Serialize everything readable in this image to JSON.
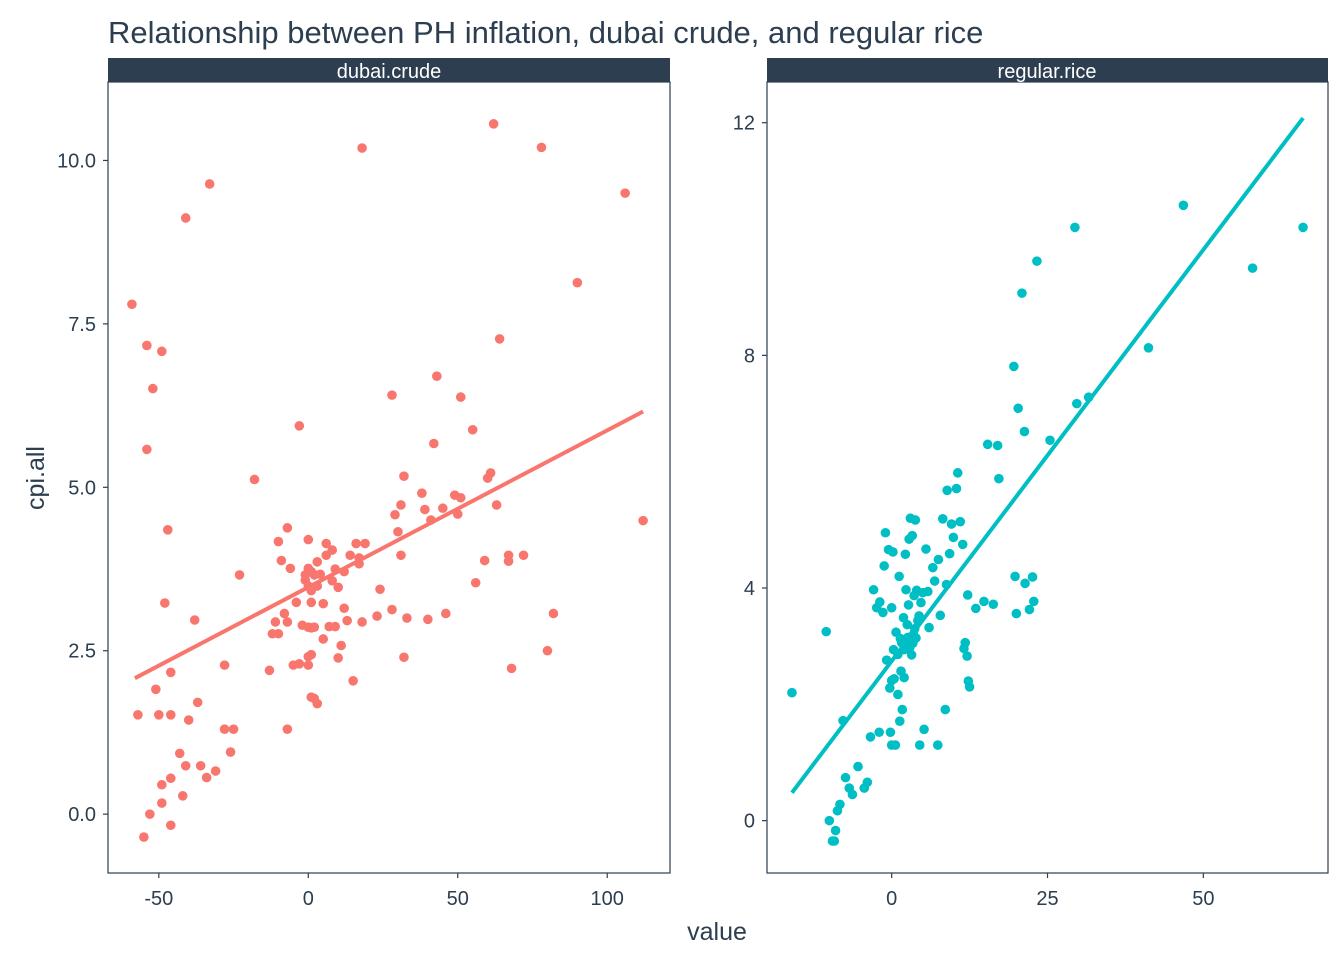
{
  "chart_data": {
    "type": "scatter",
    "title": "Relationship between PH inflation, dubai crude, and regular rice",
    "xlabel": "value",
    "ylabel": "cpi.all",
    "grid": false,
    "legend": "none",
    "facet_strip_color": "#2c3e50",
    "panels": [
      {
        "strip_label": "dubai.crude",
        "color": "#f8766d",
        "xlim": [
          -67,
          121
        ],
        "ylim": [
          -0.9,
          11.2
        ],
        "x_ticks": [
          -50,
          0,
          50,
          100
        ],
        "x_tick_labels": [
          "-50",
          "0",
          "50",
          "100"
        ],
        "y_ticks": [
          0,
          2.5,
          5,
          7.5,
          10
        ],
        "y_tick_labels": [
          "0.0",
          "2.5",
          "5.0",
          "7.5",
          "10.0"
        ],
        "trend_line": {
          "x": [
            -58,
            112
          ],
          "y": [
            2.08,
            6.16
          ]
        },
        "points": [
          [
            -59,
            7.8
          ],
          [
            -54,
            7.17
          ],
          [
            -52,
            6.51
          ],
          [
            -49,
            7.08
          ],
          [
            -54,
            5.58
          ],
          [
            -47,
            4.35
          ],
          [
            -48,
            3.23
          ],
          [
            -57,
            1.52
          ],
          [
            -51,
            1.91
          ],
          [
            -50,
            1.52
          ],
          [
            -46,
            1.52
          ],
          [
            -46,
            2.17
          ],
          [
            -53,
            0.0
          ],
          [
            -49,
            0.45
          ],
          [
            -49,
            0.17
          ],
          [
            -46,
            0.55
          ],
          [
            -55,
            -0.35
          ],
          [
            -46,
            -0.17
          ],
          [
            -43,
            0.93
          ],
          [
            -42,
            0.28
          ],
          [
            -41,
            0.74
          ],
          [
            -40,
            1.44
          ],
          [
            -37,
            1.71
          ],
          [
            -38,
            2.97
          ],
          [
            -36,
            0.74
          ],
          [
            -34,
            0.56
          ],
          [
            -31,
            0.66
          ],
          [
            -28,
            1.3
          ],
          [
            -28,
            2.28
          ],
          [
            -26,
            0.95
          ],
          [
            -25,
            1.3
          ],
          [
            -23,
            3.66
          ],
          [
            -18,
            5.12
          ],
          [
            -41,
            9.12
          ],
          [
            -33,
            9.64
          ],
          [
            -13,
            2.2
          ],
          [
            -12,
            2.76
          ],
          [
            -11,
            2.94
          ],
          [
            -10,
            2.76
          ],
          [
            -10,
            4.17
          ],
          [
            -9,
            3.88
          ],
          [
            -8,
            3.07
          ],
          [
            -7,
            4.38
          ],
          [
            -7,
            2.94
          ],
          [
            -7,
            1.3
          ],
          [
            -6,
            3.76
          ],
          [
            -5,
            2.28
          ],
          [
            -4,
            3.24
          ],
          [
            -3,
            5.94
          ],
          [
            -3,
            2.3
          ],
          [
            -2,
            2.89
          ],
          [
            -1,
            3.58
          ],
          [
            -1,
            3.66
          ],
          [
            0,
            3.49
          ],
          [
            0,
            2.86
          ],
          [
            0,
            2.41
          ],
          [
            0,
            2.28
          ],
          [
            0,
            4.2
          ],
          [
            0,
            3.76
          ],
          [
            1,
            2.44
          ],
          [
            1,
            3.24
          ],
          [
            1,
            2.85
          ],
          [
            1,
            3.71
          ],
          [
            1,
            3.42
          ],
          [
            1,
            1.79
          ],
          [
            2,
            2.86
          ],
          [
            2,
            3.66
          ],
          [
            2,
            1.77
          ],
          [
            3,
            3.86
          ],
          [
            3,
            3.49
          ],
          [
            3,
            1.69
          ],
          [
            4,
            3.67
          ],
          [
            5,
            2.68
          ],
          [
            5,
            3.22
          ],
          [
            6,
            4.14
          ],
          [
            6,
            3.96
          ],
          [
            7,
            2.87
          ],
          [
            8,
            3.57
          ],
          [
            8,
            4.04
          ],
          [
            9,
            2.87
          ],
          [
            9,
            3.75
          ],
          [
            10,
            3.47
          ],
          [
            10,
            2.39
          ],
          [
            11,
            2.58
          ],
          [
            12,
            3.71
          ],
          [
            12,
            3.15
          ],
          [
            13,
            2.96
          ],
          [
            14,
            3.96
          ],
          [
            15,
            2.04
          ],
          [
            16,
            4.14
          ],
          [
            17,
            3.83
          ],
          [
            17,
            3.92
          ],
          [
            18,
            2.94
          ],
          [
            19,
            4.14
          ],
          [
            18,
            10.19
          ],
          [
            23,
            3.03
          ],
          [
            24,
            3.44
          ],
          [
            28,
            3.13
          ],
          [
            28,
            6.41
          ],
          [
            29,
            4.58
          ],
          [
            30,
            4.32
          ],
          [
            31,
            4.73
          ],
          [
            31,
            3.96
          ],
          [
            32,
            5.17
          ],
          [
            32,
            2.4
          ],
          [
            33,
            3.0
          ],
          [
            38,
            4.91
          ],
          [
            39,
            4.66
          ],
          [
            40,
            2.98
          ],
          [
            41,
            4.5
          ],
          [
            42,
            5.67
          ],
          [
            43,
            6.7
          ],
          [
            45,
            4.68
          ],
          [
            46,
            3.07
          ],
          [
            49,
            4.88
          ],
          [
            50,
            4.59
          ],
          [
            51,
            4.84
          ],
          [
            51,
            6.38
          ],
          [
            55,
            5.88
          ],
          [
            56,
            3.54
          ],
          [
            59,
            3.88
          ],
          [
            60,
            5.14
          ],
          [
            61,
            5.22
          ],
          [
            62,
            10.56
          ],
          [
            63,
            4.73
          ],
          [
            64,
            7.27
          ],
          [
            67,
            3.96
          ],
          [
            67,
            3.87
          ],
          [
            68,
            2.23
          ],
          [
            72,
            3.96
          ],
          [
            78,
            10.2
          ],
          [
            80,
            2.5
          ],
          [
            82,
            3.07
          ],
          [
            90,
            8.13
          ],
          [
            106,
            9.5
          ],
          [
            112,
            4.49
          ]
        ]
      },
      {
        "strip_label": "regular.rice",
        "color": "#00bfc4",
        "xlim": [
          -20,
          70
        ],
        "ylim": [
          -0.9,
          12.7
        ],
        "x_ticks": [
          0,
          25,
          50
        ],
        "x_tick_labels": [
          "0",
          "25",
          "50"
        ],
        "y_ticks": [
          0,
          4,
          8,
          12
        ],
        "y_tick_labels": [
          "0",
          "4",
          "8",
          "12"
        ],
        "trend_line": {
          "x": [
            -16,
            66
          ],
          "y": [
            0.48,
            12.08
          ]
        },
        "points": [
          [
            -16,
            2.2
          ],
          [
            -10.5,
            3.25
          ],
          [
            -10,
            0.0
          ],
          [
            -9.5,
            -0.35
          ],
          [
            -9.2,
            -0.35
          ],
          [
            -9,
            -0.17
          ],
          [
            -8.7,
            0.17
          ],
          [
            -8.3,
            0.28
          ],
          [
            -7.8,
            1.72
          ],
          [
            -7.4,
            0.74
          ],
          [
            -6.8,
            0.56
          ],
          [
            -6.3,
            0.45
          ],
          [
            -5.4,
            0.93
          ],
          [
            -4.4,
            0.56
          ],
          [
            -3.9,
            0.66
          ],
          [
            -3.4,
            1.44
          ],
          [
            -2.9,
            3.97
          ],
          [
            -2.4,
            3.66
          ],
          [
            -2,
            1.52
          ],
          [
            -1.9,
            3.76
          ],
          [
            -1.4,
            3.58
          ],
          [
            -1.2,
            4.38
          ],
          [
            -1,
            4.95
          ],
          [
            -0.8,
            2.76
          ],
          [
            -0.5,
            4.66
          ],
          [
            -0.3,
            2.28
          ],
          [
            -0.2,
            1.52
          ],
          [
            0,
            2.41
          ],
          [
            0,
            3.66
          ],
          [
            0,
            1.3
          ],
          [
            0.2,
            4.62
          ],
          [
            0.3,
            2.94
          ],
          [
            0.4,
            2.44
          ],
          [
            0.6,
            1.3
          ],
          [
            0.7,
            3.24
          ],
          [
            1,
            2.86
          ],
          [
            1,
            2.17
          ],
          [
            1.2,
            4.2
          ],
          [
            1.3,
            1.71
          ],
          [
            1.4,
            3.13
          ],
          [
            1.5,
            2.57
          ],
          [
            1.6,
            3.06
          ],
          [
            1.7,
            1.91
          ],
          [
            1.9,
            3.49
          ],
          [
            2,
            2.94
          ],
          [
            2,
            2.46
          ],
          [
            2.2,
            4.58
          ],
          [
            2.3,
            3.97
          ],
          [
            2.4,
            3.03
          ],
          [
            2.5,
            3.37
          ],
          [
            2.6,
            3.15
          ],
          [
            2.7,
            3.71
          ],
          [
            2.8,
            4.84
          ],
          [
            2.9,
            2.97
          ],
          [
            3,
            5.2
          ],
          [
            3.1,
            3.03
          ],
          [
            3.2,
            2.85
          ],
          [
            3.3,
            4.9
          ],
          [
            3.4,
            3.05
          ],
          [
            3.5,
            3.2
          ],
          [
            3.6,
            3.87
          ],
          [
            3.7,
            3.3
          ],
          [
            3.8,
            5.17
          ],
          [
            3.9,
            3.14
          ],
          [
            4,
            3.96
          ],
          [
            4.2,
            3.44
          ],
          [
            4.4,
            3.52
          ],
          [
            4.5,
            1.3
          ],
          [
            4.7,
            3.75
          ],
          [
            5,
            3.92
          ],
          [
            5.2,
            1.57
          ],
          [
            5.5,
            4.67
          ],
          [
            5.8,
            3.94
          ],
          [
            6,
            3.32
          ],
          [
            6.6,
            4.35
          ],
          [
            6.9,
            4.12
          ],
          [
            7.4,
            1.3
          ],
          [
            7.5,
            4.49
          ],
          [
            7.8,
            3.53
          ],
          [
            8.2,
            5.19
          ],
          [
            8.6,
            1.91
          ],
          [
            8.8,
            4.06
          ],
          [
            8.9,
            5.68
          ],
          [
            9.3,
            4.59
          ],
          [
            9.6,
            5.1
          ],
          [
            9.9,
            4.87
          ],
          [
            10.4,
            5.71
          ],
          [
            10.6,
            5.98
          ],
          [
            11,
            5.14
          ],
          [
            11.4,
            4.75
          ],
          [
            11.6,
            2.96
          ],
          [
            11.8,
            3.06
          ],
          [
            12.1,
            2.83
          ],
          [
            12.2,
            3.88
          ],
          [
            12.3,
            2.4
          ],
          [
            12.5,
            2.3
          ],
          [
            13.5,
            3.65
          ],
          [
            14.8,
            3.77
          ],
          [
            15.4,
            6.47
          ],
          [
            16.3,
            3.72
          ],
          [
            17,
            6.45
          ],
          [
            17.2,
            5.88
          ],
          [
            19.6,
            7.81
          ],
          [
            19.8,
            4.2
          ],
          [
            20,
            3.56
          ],
          [
            20.3,
            7.09
          ],
          [
            20.9,
            9.07
          ],
          [
            21.3,
            6.69
          ],
          [
            21.4,
            4.08
          ],
          [
            22.1,
            3.63
          ],
          [
            22.6,
            4.19
          ],
          [
            22.8,
            3.77
          ],
          [
            23.3,
            9.62
          ],
          [
            25.4,
            6.54
          ],
          [
            29.7,
            7.17
          ],
          [
            29.4,
            10.2
          ],
          [
            31.6,
            7.28
          ],
          [
            41.2,
            8.13
          ],
          [
            46.8,
            10.58
          ],
          [
            57.9,
            9.5
          ],
          [
            66,
            10.2
          ]
        ]
      }
    ]
  }
}
